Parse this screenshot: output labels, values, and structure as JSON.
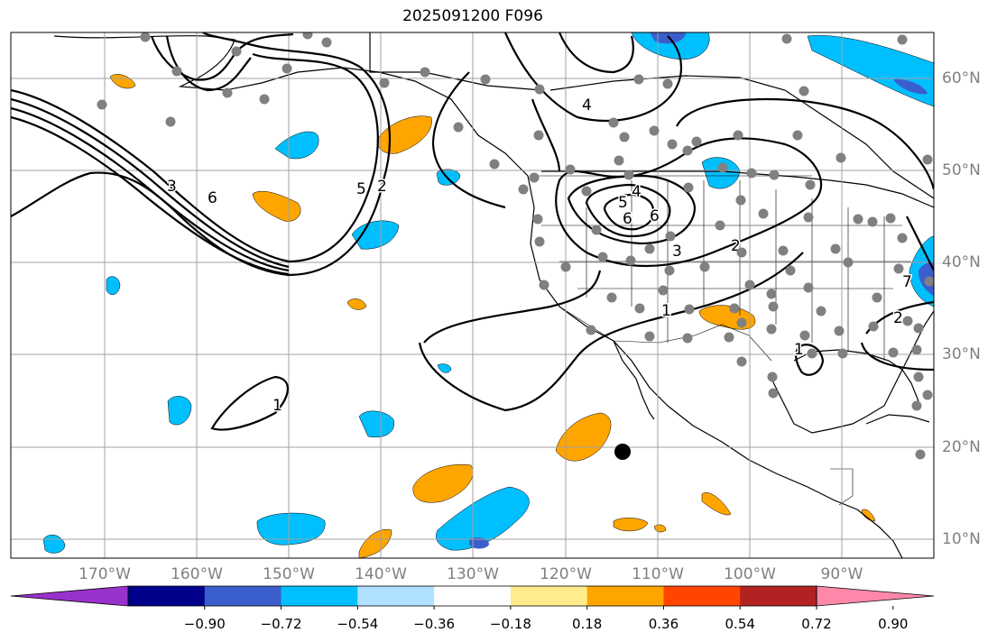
{
  "title": "2025091200 F096",
  "map": {
    "region": "Eastern North Pacific and North America",
    "lon_labels": [
      "170°W",
      "160°W",
      "150°W",
      "140°W",
      "130°W",
      "120°W",
      "110°W",
      "100°W",
      "90°W"
    ],
    "lat_labels": [
      "10°N",
      "20°N",
      "30°N",
      "40°N",
      "50°N",
      "60°N"
    ],
    "contour_labels": [
      "1",
      "1",
      "1",
      "2",
      "2",
      "2",
      "3",
      "3",
      "4",
      "4",
      "5",
      "5",
      "6",
      "6",
      "6",
      "7"
    ]
  },
  "colorbar": {
    "tick_labels": [
      "−0.90",
      "−0.72",
      "−0.54",
      "−0.36",
      "−0.18",
      "0.18",
      "0.36",
      "0.54",
      "0.72",
      "0.90"
    ],
    "colors": [
      "#9932cc",
      "#00008b",
      "#3a5fcd",
      "#00bfff",
      "#b0e2ff",
      "#ffffff",
      "#ffec8b",
      "#ffa500",
      "#ff4500",
      "#b22222",
      "#ff88aa"
    ]
  },
  "colors": {
    "negative_strong": "#3a5fcd",
    "negative": "#00bfff",
    "positive": "#ffa500",
    "positive_light": "#ffec8b",
    "station_dots": "#808080",
    "grid": "#a0a0a0"
  }
}
